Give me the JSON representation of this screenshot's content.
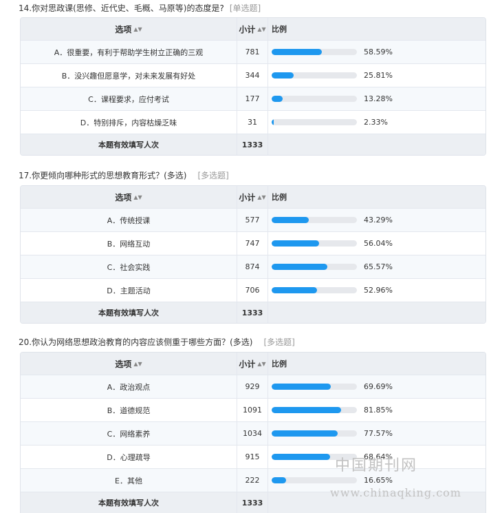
{
  "header": {
    "option": "选项",
    "count": "小计",
    "ratio": "比例",
    "sort_icon": "sort-icon"
  },
  "questions": [
    {
      "title": "14.你对思政课(思修、近代史、毛概、马原等)的态度是?",
      "type": "[单选题]",
      "rows": [
        {
          "label": "A．很重要，有利于帮助学生树立正确的三观",
          "count": "781",
          "pct": "58.59%",
          "value": 58.59
        },
        {
          "label": "B．没兴趣但愿意学，对未来发展有好处",
          "count": "344",
          "pct": "25.81%",
          "value": 25.81
        },
        {
          "label": "C．课程要求，应付考试",
          "count": "177",
          "pct": "13.28%",
          "value": 13.28
        },
        {
          "label": "D．特别排斥，内容枯燥乏味",
          "count": "31",
          "pct": "2.33%",
          "value": 2.33
        }
      ],
      "total_label": "本题有效填写人次",
      "total": "1333"
    },
    {
      "title": "17.你更倾向哪种形式的思想教育形式？(多选)",
      "type": "[多选题]",
      "rows": [
        {
          "label": "A．传统授课",
          "count": "577",
          "pct": "43.29%",
          "value": 43.29
        },
        {
          "label": "B．网络互动",
          "count": "747",
          "pct": "56.04%",
          "value": 56.04
        },
        {
          "label": "C．社会实践",
          "count": "874",
          "pct": "65.57%",
          "value": 65.57
        },
        {
          "label": "D．主题活动",
          "count": "706",
          "pct": "52.96%",
          "value": 52.96
        }
      ],
      "total_label": "本题有效填写人次",
      "total": "1333"
    },
    {
      "title": "20.你认为网络思想政治教育的内容应该侧重于哪些方面？(多选)",
      "type": "[多选题]",
      "rows": [
        {
          "label": "A．政治观点",
          "count": "929",
          "pct": "69.69%",
          "value": 69.69
        },
        {
          "label": "B．道德规范",
          "count": "1091",
          "pct": "81.85%",
          "value": 81.85
        },
        {
          "label": "C．网络素养",
          "count": "1034",
          "pct": "77.57%",
          "value": 77.57
        },
        {
          "label": "D．心理疏导",
          "count": "915",
          "pct": "68.64%",
          "value": 68.64
        },
        {
          "label": "E．其他",
          "count": "222",
          "pct": "16.65%",
          "value": 16.65
        }
      ],
      "total_label": "本题有效填写人次",
      "total": "1333"
    }
  ],
  "watermark": {
    "cn": "中国期刊网",
    "url": "www.chinaqking.com"
  },
  "colors": {
    "bar": "#1e98ef",
    "track": "#e6e8ec",
    "header_bg": "#eceff3"
  }
}
